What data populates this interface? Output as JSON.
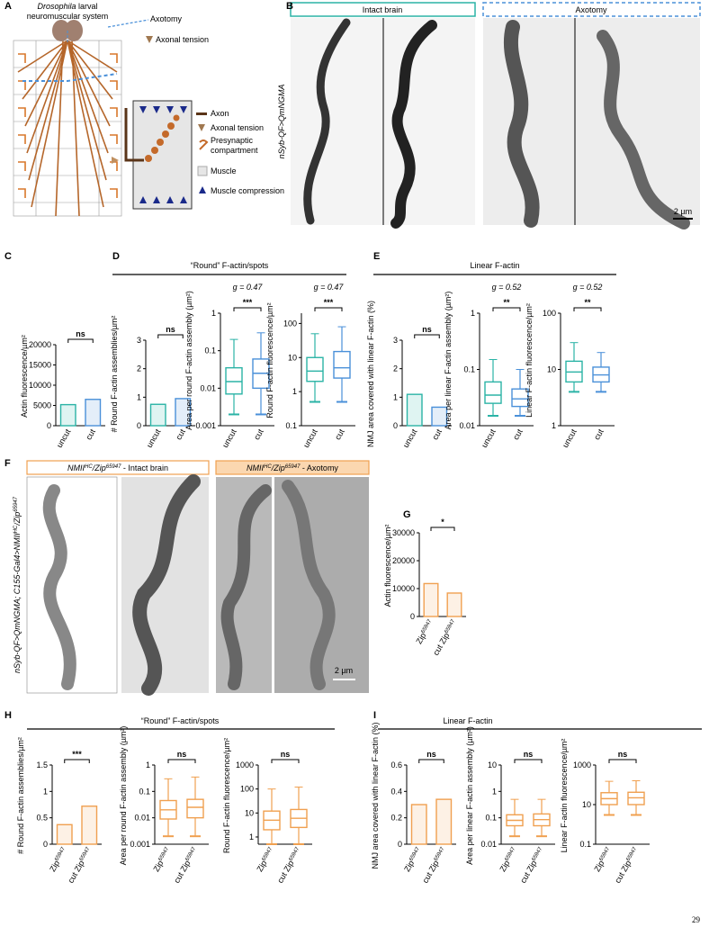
{
  "letters": [
    "A",
    "B",
    "C",
    "D",
    "E",
    "F",
    "G",
    "H",
    "I"
  ],
  "panel_a": {
    "title": {
      "parts": [
        {
          "text": "Drosophila",
          "italic": true
        },
        {
          "text": " larval"
        }
      ]
    },
    "title2": "neuromuscular system",
    "axotomy": "Axotomy",
    "tension": "Axonal tension",
    "legend": [
      "Axon",
      "Axonal tension",
      "Presynaptic",
      "compartment",
      "Muscle",
      "Muscle compression"
    ]
  },
  "panel_b": {
    "intact": "Intact brain",
    "axotomy": "Axotomy",
    "ylabel": "nSyb-QF>QmNGMA",
    "scale": "2 µm"
  },
  "panel_f": {
    "intact": {
      "parts": [
        {
          "text": "NMII",
          "italic": true
        },
        {
          "text": "HC",
          "sup": true,
          "italic": true
        },
        {
          "text": "/Zip",
          "italic": true
        },
        {
          "text": "65947",
          "sup": true,
          "italic": true
        },
        {
          "text": " - Intact brain"
        }
      ]
    },
    "axotomy": {
      "parts": [
        {
          "text": "NMII",
          "italic": true
        },
        {
          "text": "HC",
          "sup": true,
          "italic": true
        },
        {
          "text": "/Zip",
          "italic": true
        },
        {
          "text": "65947",
          "sup": true,
          "italic": true
        },
        {
          "text": " - Axotomy"
        }
      ]
    },
    "ylabel": {
      "parts": [
        {
          "text": "nSyb-QF>QmNGMA; C155-Gal4>NMII",
          "italic": true
        },
        {
          "text": "HC",
          "sup": true,
          "italic": true
        },
        {
          "text": "/Zip",
          "italic": true
        },
        {
          "text": "65947",
          "sup": true,
          "italic": true
        }
      ]
    },
    "scale": "2 µm"
  },
  "group_titles": [
    "“Round” F-actin/spots",
    "Linear F-actin",
    "“Round” F-actin/spots",
    "Linear F-actin"
  ],
  "page_number": "29",
  "charts": [
    {
      "type": "bar",
      "ylabel": "Actin fluorescence/µm²",
      "categories": [
        "uncut",
        "cut"
      ],
      "ylim": [
        0,
        20000
      ],
      "yticks": [
        0,
        5000,
        10000,
        15000,
        20000
      ],
      "log": false,
      "colors": [
        "#2bb3a6",
        "#4a90d9"
      ],
      "values": [
        5200,
        6500
      ],
      "significance": "ns"
    },
    {
      "type": "bar",
      "ylabel": "# Round F-actin assemblies/µm²",
      "categories": [
        "uncut",
        "cut"
      ],
      "ylim": [
        0,
        3
      ],
      "yticks": [
        0,
        1,
        2,
        3
      ],
      "log": false,
      "colors": [
        "#2bb3a6",
        "#4a90d9"
      ],
      "values": [
        0.75,
        0.95
      ],
      "significance": "ns"
    },
    {
      "type": "box",
      "ylabel": "Area per round F-actin assembly (µm²)",
      "categories": [
        "uncut",
        "cut"
      ],
      "ylim": [
        0.001,
        1
      ],
      "yticks": [
        0.001,
        0.01,
        0.1,
        1
      ],
      "log": true,
      "colors": [
        "#2bb3a6",
        "#4a90d9"
      ],
      "boxes": [
        {
          "min": 0.002,
          "q1": 0.007,
          "median": 0.015,
          "q3": 0.035,
          "max": 0.2
        },
        {
          "min": 0.002,
          "q1": 0.01,
          "median": 0.025,
          "q3": 0.06,
          "max": 0.3
        }
      ],
      "significance": "***",
      "g": "g = 0.47"
    },
    {
      "type": "box",
      "ylabel": "Round F-actin fluorescence/µm²",
      "categories": [
        "uncut",
        "cut"
      ],
      "ylim": [
        0.1,
        200
      ],
      "yticks": [
        0.1,
        1,
        10,
        100
      ],
      "log": true,
      "colors": [
        "#2bb3a6",
        "#4a90d9"
      ],
      "boxes": [
        {
          "min": 0.5,
          "q1": 2,
          "median": 4,
          "q3": 10,
          "max": 50
        },
        {
          "min": 0.5,
          "q1": 2.5,
          "median": 5,
          "q3": 15,
          "max": 80
        }
      ],
      "significance": "***",
      "g": "g = 0.47"
    },
    {
      "type": "bar",
      "ylabel": "NMJ area covered with linear F-actin (%)",
      "categories": [
        "uncut",
        "cut"
      ],
      "ylim": [
        0,
        3
      ],
      "yticks": [
        0,
        1,
        2,
        3
      ],
      "log": false,
      "colors": [
        "#2bb3a6",
        "#4a90d9"
      ],
      "values": [
        1.1,
        0.65
      ],
      "significance": "ns"
    },
    {
      "type": "box",
      "ylabel": "Area per linear F-actin assembly (µm²)",
      "categories": [
        "uncut",
        "cut"
      ],
      "ylim": [
        0.01,
        1
      ],
      "yticks": [
        0.01,
        0.1,
        1
      ],
      "log": true,
      "colors": [
        "#2bb3a6",
        "#4a90d9"
      ],
      "boxes": [
        {
          "min": 0.015,
          "q1": 0.025,
          "median": 0.035,
          "q3": 0.06,
          "max": 0.15
        },
        {
          "min": 0.015,
          "q1": 0.022,
          "median": 0.03,
          "q3": 0.045,
          "max": 0.1
        }
      ],
      "significance": "**",
      "g": "g = 0.52"
    },
    {
      "type": "box",
      "ylabel": "Linear F-actin fluorescence/µm²",
      "categories": [
        "uncut",
        "cut"
      ],
      "ylim": [
        1,
        100
      ],
      "yticks": [
        1,
        10,
        100
      ],
      "log": true,
      "colors": [
        "#2bb3a6",
        "#4a90d9"
      ],
      "boxes": [
        {
          "min": 4,
          "q1": 6,
          "median": 9,
          "q3": 14,
          "max": 30
        },
        {
          "min": 4,
          "q1": 6,
          "median": 8,
          "q3": 11,
          "max": 20
        }
      ],
      "significance": "**",
      "g": "g = 0.52"
    },
    {
      "type": "bar",
      "ylabel": "Actin fluorescence/µm²",
      "categories": [
        {
          "parts": [
            {
              "text": "Zip"
            },
            {
              "text": "65947",
              "sup": true
            }
          ]
        },
        {
          "parts": [
            {
              "text": "cut Zip"
            },
            {
              "text": "65947",
              "sup": true
            }
          ]
        }
      ],
      "ylim": [
        0,
        30000
      ],
      "yticks": [
        0,
        10000,
        20000,
        30000
      ],
      "log": false,
      "colors": [
        "#f0a050",
        "#f0a050"
      ],
      "values": [
        11800,
        8400
      ],
      "significance": "*"
    },
    {
      "type": "bar",
      "ylabel": "# Round F-actin assemblies/µm²",
      "categories": [
        {
          "parts": [
            {
              "text": "Zip"
            },
            {
              "text": "65947",
              "sup": true
            }
          ]
        },
        {
          "parts": [
            {
              "text": "cut Zip"
            },
            {
              "text": "65947",
              "sup": true
            }
          ]
        }
      ],
      "ylim": [
        0,
        1.5
      ],
      "yticks": [
        0,
        0.5,
        1,
        1.5
      ],
      "log": false,
      "colors": [
        "#f0a050",
        "#f0a050"
      ],
      "values": [
        0.37,
        0.72
      ],
      "significance": "***"
    },
    {
      "type": "box",
      "ylabel": "Area per round F-actin assembly (µm²)",
      "categories": [
        {
          "parts": [
            {
              "text": "Zip"
            },
            {
              "text": "65947",
              "sup": true
            }
          ]
        },
        {
          "parts": [
            {
              "text": "cut Zip"
            },
            {
              "text": "65947",
              "sup": true
            }
          ]
        }
      ],
      "ylim": [
        0.001,
        1
      ],
      "yticks": [
        0.001,
        0.01,
        0.1,
        1
      ],
      "log": true,
      "colors": [
        "#f0a050",
        "#f0a050"
      ],
      "boxes": [
        {
          "min": 0.002,
          "q1": 0.009,
          "median": 0.02,
          "q3": 0.045,
          "max": 0.3
        },
        {
          "min": 0.002,
          "q1": 0.01,
          "median": 0.025,
          "q3": 0.05,
          "max": 0.35
        }
      ],
      "significance": "ns"
    },
    {
      "type": "box",
      "ylabel": "Round F-actin fluorescence/µm²",
      "categories": [
        {
          "parts": [
            {
              "text": "Zip"
            },
            {
              "text": "65947",
              "sup": true
            }
          ]
        },
        {
          "parts": [
            {
              "text": "cut Zip"
            },
            {
              "text": "65947",
              "sup": true
            }
          ]
        }
      ],
      "ylim": [
        0.5,
        1000
      ],
      "yticks": [
        1,
        10,
        100,
        1000
      ],
      "log": true,
      "colors": [
        "#f0a050",
        "#f0a050"
      ],
      "boxes": [
        {
          "min": 0.5,
          "q1": 2,
          "median": 5,
          "q3": 12,
          "max": 100
        },
        {
          "min": 0.5,
          "q1": 2.5,
          "median": 6,
          "q3": 14,
          "max": 120
        }
      ],
      "significance": "ns"
    },
    {
      "type": "bar",
      "ylabel": "NMJ area covered with linear F-actin (%)",
      "categories": [
        {
          "parts": [
            {
              "text": "Zip"
            },
            {
              "text": "65947",
              "sup": true
            }
          ]
        },
        {
          "parts": [
            {
              "text": "cut Zip"
            },
            {
              "text": "65947",
              "sup": true
            }
          ]
        }
      ],
      "ylim": [
        0,
        0.6
      ],
      "yticks": [
        0,
        0.2,
        0.4,
        0.6
      ],
      "log": false,
      "colors": [
        "#f0a050",
        "#f0a050"
      ],
      "values": [
        0.3,
        0.34
      ],
      "significance": "ns"
    },
    {
      "type": "box",
      "ylabel": "Area per linear F-actin assembly (µm²)",
      "categories": [
        {
          "parts": [
            {
              "text": "Zip"
            },
            {
              "text": "65947",
              "sup": true
            }
          ]
        },
        {
          "parts": [
            {
              "text": "cut Zip"
            },
            {
              "text": "65947",
              "sup": true
            }
          ]
        }
      ],
      "ylim": [
        0.01,
        10
      ],
      "yticks": [
        0.01,
        0.1,
        1,
        10
      ],
      "log": true,
      "colors": [
        "#f0a050",
        "#f0a050"
      ],
      "boxes": [
        {
          "min": 0.02,
          "q1": 0.05,
          "median": 0.08,
          "q3": 0.13,
          "max": 0.5
        },
        {
          "min": 0.02,
          "q1": 0.05,
          "median": 0.085,
          "q3": 0.14,
          "max": 0.5
        }
      ],
      "significance": "ns"
    },
    {
      "type": "box",
      "ylabel": "Linear F-actin fluorescence/µm²",
      "categories": [
        {
          "parts": [
            {
              "text": "Zip"
            },
            {
              "text": "65947",
              "sup": true
            }
          ]
        },
        {
          "parts": [
            {
              "text": "cut Zip"
            },
            {
              "text": "65947",
              "sup": true
            }
          ]
        }
      ],
      "ylim": [
        0.1,
        1000
      ],
      "yticks": [
        0.1,
        10,
        1000
      ],
      "log": true,
      "colors": [
        "#f0a050",
        "#f0a050"
      ],
      "boxes": [
        {
          "min": 3,
          "q1": 10,
          "median": 20,
          "q3": 40,
          "max": 150
        },
        {
          "min": 3,
          "q1": 10,
          "median": 22,
          "q3": 42,
          "max": 160
        }
      ],
      "significance": "ns"
    }
  ]
}
